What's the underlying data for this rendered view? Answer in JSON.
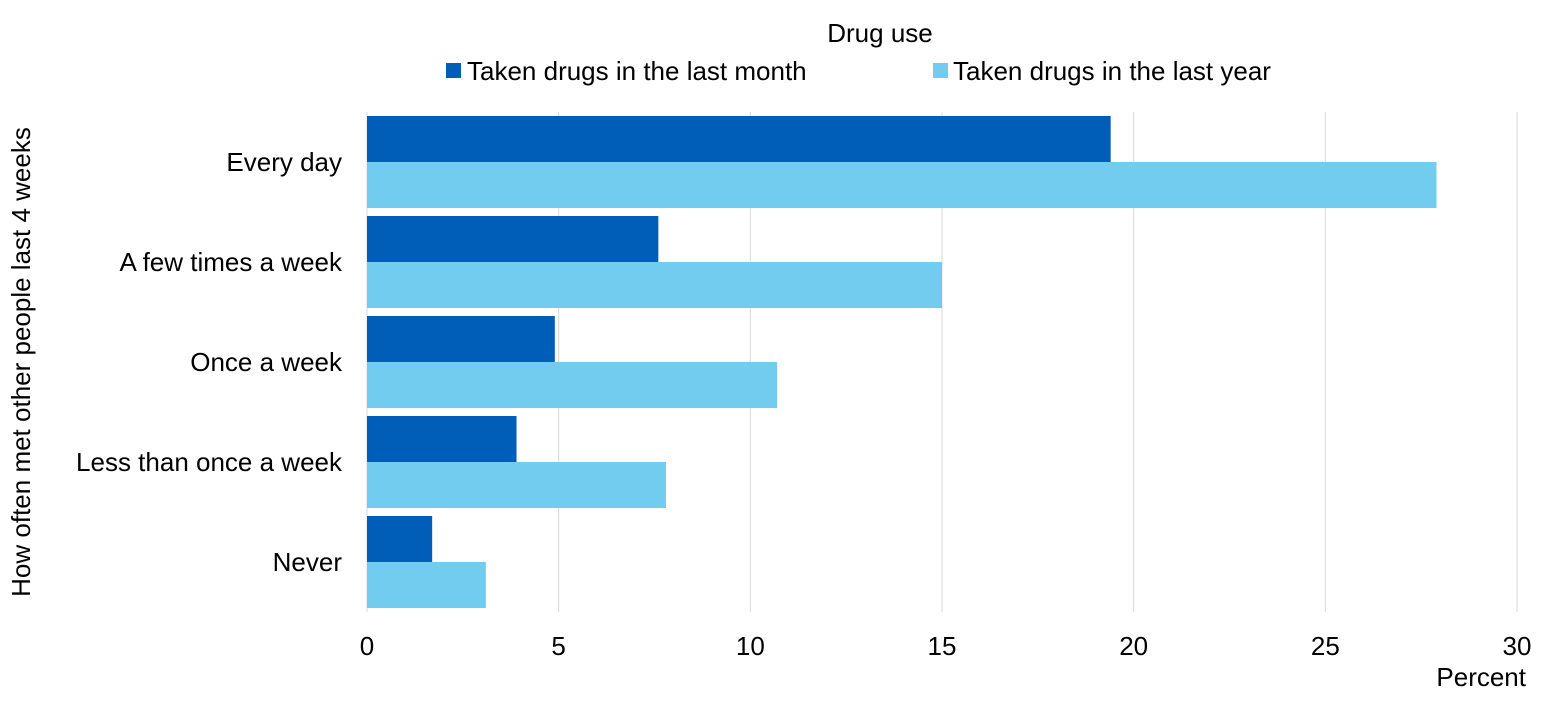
{
  "chart_data": {
    "type": "bar",
    "orientation": "horizontal",
    "legend_title": "Drug use",
    "legend_position": "top",
    "categories": [
      "Every day",
      "A few times a week",
      "Once a week",
      "Less than once a week",
      "Never"
    ],
    "series": [
      {
        "name": "Taken drugs in the last month",
        "color": "#005EB8",
        "values": [
          19.4,
          7.6,
          4.9,
          3.9,
          1.7
        ]
      },
      {
        "name": "Taken drugs in the last year",
        "color": "#71CCEF",
        "values": [
          27.9,
          15.0,
          10.7,
          7.8,
          3.1
        ]
      }
    ],
    "xlabel": "Percent",
    "ylabel": "How often met other people last 4 weeks",
    "xlim": [
      0,
      30
    ],
    "xticks": [
      "0",
      "5",
      "10",
      "15",
      "20",
      "25",
      "30"
    ],
    "grid": "vertical"
  }
}
